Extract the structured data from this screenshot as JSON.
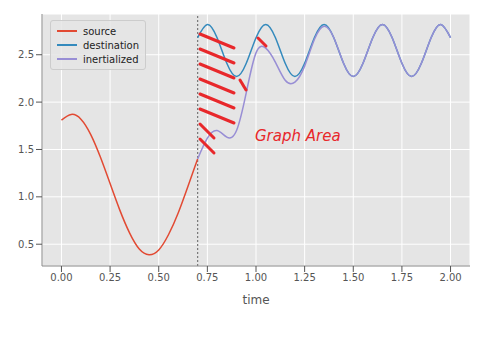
{
  "chart_data": {
    "type": "line",
    "x_label": "time",
    "x": [
      0,
      0.05,
      0.1,
      0.15,
      0.2,
      0.25,
      0.3,
      0.35,
      0.4,
      0.45,
      0.5,
      0.55,
      0.6,
      0.65,
      0.7,
      0.75,
      0.8,
      0.85,
      0.9,
      0.95,
      1.0,
      1.05,
      1.1,
      1.15,
      1.2,
      1.25,
      1.3,
      1.35,
      1.4,
      1.45,
      1.5,
      1.55,
      1.6,
      1.65,
      1.7,
      1.75,
      1.8,
      1.85,
      1.9,
      1.95,
      2.0
    ],
    "series": [
      {
        "name": "source",
        "color": "#E24A33",
        "values": [
          1.81,
          1.87,
          1.82,
          1.66,
          1.42,
          1.14,
          0.86,
          0.62,
          0.45,
          0.39,
          0.44,
          0.6,
          0.83,
          1.11,
          1.4,
          null,
          null,
          null,
          null,
          null,
          null,
          null,
          null,
          null,
          null,
          null,
          null,
          null,
          null,
          null,
          null,
          null,
          null,
          null,
          null,
          null,
          null,
          null,
          null,
          null,
          null
        ]
      },
      {
        "name": "destination",
        "color": "#348ABD",
        "values": [
          null,
          null,
          null,
          null,
          null,
          null,
          null,
          null,
          null,
          null,
          null,
          null,
          null,
          null,
          2.68,
          2.82,
          2.68,
          2.41,
          2.27,
          2.41,
          2.68,
          2.82,
          2.68,
          2.41,
          2.27,
          2.41,
          2.68,
          2.82,
          2.68,
          2.41,
          2.27,
          2.41,
          2.68,
          2.82,
          2.68,
          2.41,
          2.27,
          2.41,
          2.68,
          2.82,
          2.68
        ]
      },
      {
        "name": "inertialized",
        "color": "#988ED5",
        "values": [
          null,
          null,
          null,
          null,
          null,
          null,
          null,
          null,
          null,
          null,
          null,
          null,
          null,
          null,
          1.4,
          1.62,
          1.7,
          1.63,
          1.7,
          2.1,
          2.52,
          2.57,
          2.42,
          2.23,
          2.21,
          2.38,
          2.66,
          2.8,
          2.68,
          2.41,
          2.27,
          2.41,
          2.68,
          2.82,
          2.68,
          2.41,
          2.27,
          2.41,
          2.68,
          2.82,
          2.68
        ]
      }
    ],
    "xlim": [
      -0.1,
      2.1
    ],
    "xticks": [
      {
        "value": 0,
        "label": "0.00"
      },
      {
        "value": 0.25,
        "label": "0.25"
      },
      {
        "value": 0.5,
        "label": "0.50"
      },
      {
        "value": 0.75,
        "label": "0.75"
      },
      {
        "value": 1,
        "label": "1.00"
      },
      {
        "value": 1.25,
        "label": "1.25"
      },
      {
        "value": 1.5,
        "label": "1.50"
      },
      {
        "value": 1.75,
        "label": "1.75"
      },
      {
        "value": 2,
        "label": "2.00"
      }
    ],
    "ylim": [
      0.27,
      2.93
    ],
    "yticks": [
      0.5,
      {
        "value": 1,
        "label": "1.0"
      },
      1.5,
      {
        "value": 2,
        "label": "2.0"
      },
      2.5
    ],
    "vline": 0.7,
    "annotations": [
      {
        "text": "Graph Area",
        "color": "#E8282B"
      }
    ],
    "grid": true,
    "legend": "upper left"
  }
}
